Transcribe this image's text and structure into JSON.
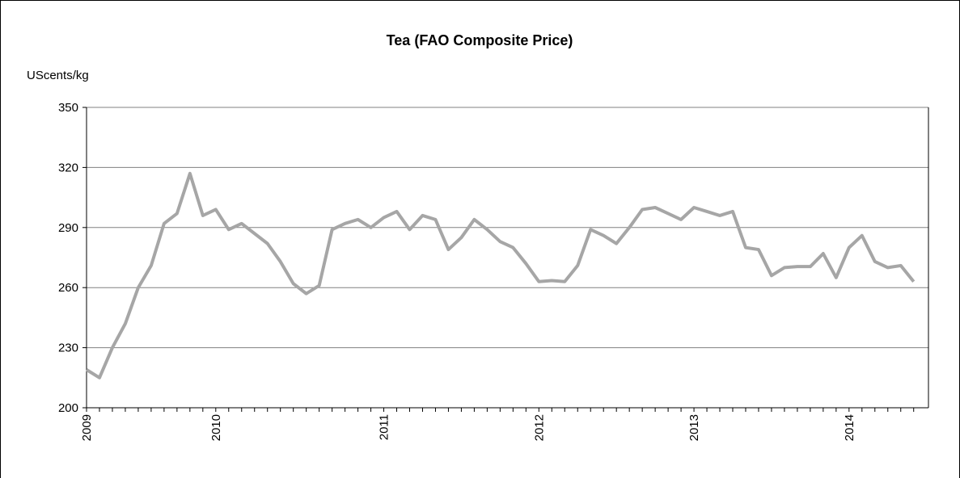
{
  "chart_data": {
    "type": "line",
    "title": "Tea (FAO Composite Price)",
    "y_label": "UScents/kg",
    "categories": [
      "2009",
      null,
      null,
      null,
      null,
      null,
      null,
      null,
      null,
      null,
      "2010",
      null,
      null,
      null,
      null,
      null,
      null,
      null,
      null,
      null,
      null,
      null,
      null,
      "2011",
      null,
      null,
      null,
      null,
      null,
      null,
      null,
      null,
      null,
      null,
      null,
      "2012",
      null,
      null,
      null,
      null,
      null,
      null,
      null,
      null,
      null,
      null,
      null,
      "2013",
      null,
      null,
      null,
      null,
      null,
      null,
      null,
      null,
      null,
      null,
      null,
      "2014",
      null,
      null,
      null,
      null,
      null
    ],
    "values": [
      219,
      215,
      230,
      242,
      260,
      271,
      292,
      297,
      317,
      296,
      299,
      289,
      292,
      287,
      282,
      273,
      262,
      257,
      261,
      289,
      292,
      294,
      290,
      295,
      298,
      289,
      296,
      294,
      279,
      285,
      294,
      289,
      283,
      280,
      272,
      263,
      263.5,
      263,
      271,
      289,
      286,
      282,
      290,
      299,
      300,
      297,
      294,
      300,
      298,
      296,
      298,
      280,
      279,
      266,
      270,
      270.5,
      270.5,
      277,
      265,
      280,
      286,
      273,
      270,
      271,
      263
    ],
    "color": "#a6a6a6",
    "ylim": [
      200,
      350
    ],
    "yticks": [
      200,
      230,
      260,
      290,
      320,
      350
    ],
    "grid": true
  }
}
